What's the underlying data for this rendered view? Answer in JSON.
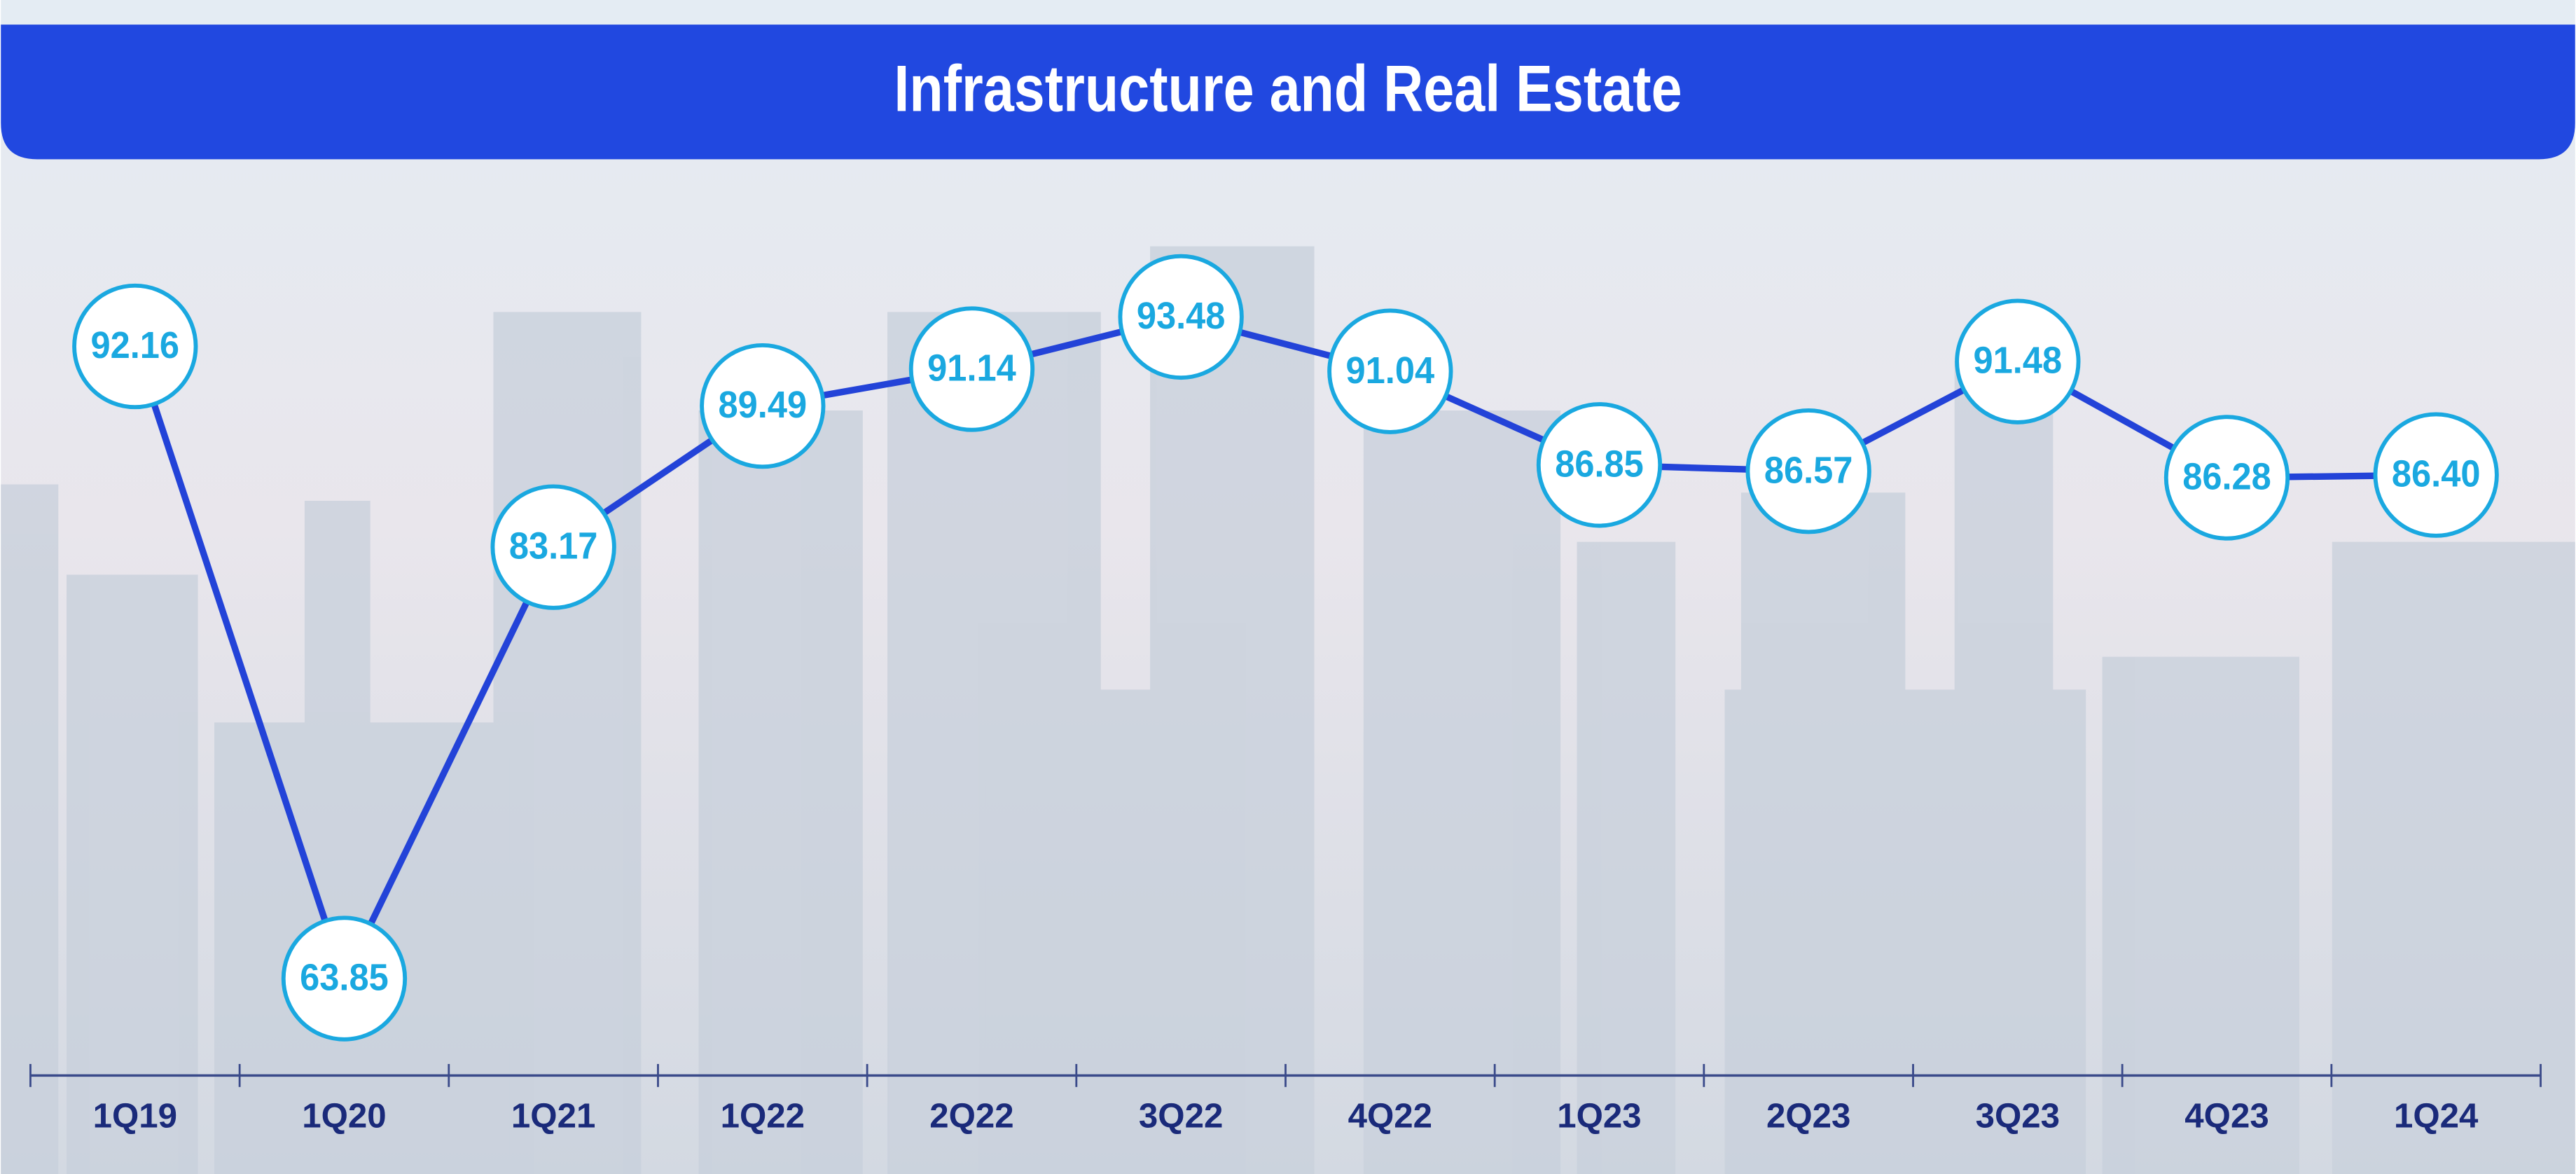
{
  "chart_data": {
    "type": "line",
    "title": "Infrastructure and Real Estate",
    "categories": [
      "1Q19",
      "1Q20",
      "1Q21",
      "1Q22",
      "2Q22",
      "3Q22",
      "4Q22",
      "1Q23",
      "2Q23",
      "3Q23",
      "4Q23",
      "1Q24"
    ],
    "series": [
      {
        "name": "Infrastructure and Real Estate",
        "color": "#2343d8",
        "values": [
          92.16,
          63.85,
          83.17,
          89.49,
          91.14,
          93.48,
          91.04,
          86.85,
          86.57,
          91.48,
          86.28,
          86.4
        ],
        "value_labels": [
          "92.16",
          "63.85",
          "83.17",
          "89.49",
          "91.14",
          "93.48",
          "91.04",
          "86.85",
          "86.57",
          "91.48",
          "86.28",
          "86.40"
        ]
      }
    ],
    "marker_color": "#1aa8e0",
    "title_color": "#2148e0",
    "category_color": "#1a2a7a"
  }
}
